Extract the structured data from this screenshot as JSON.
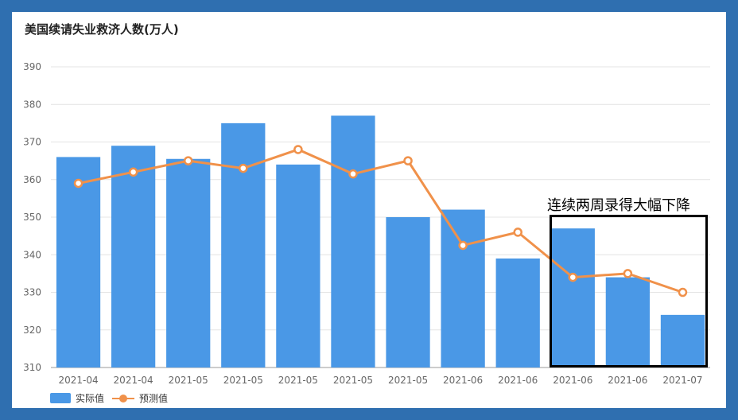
{
  "title": "美国续请失业救济人数(万人)",
  "colors": {
    "bar": "#4a98e6",
    "line": "#f0914a",
    "grid": "#e4e4e4",
    "axis_text": "#666666"
  },
  "legend": {
    "bar_label": "实际值",
    "line_label": "预测值"
  },
  "annotation": "连续两周录得大幅下降",
  "chart_data": {
    "type": "bar",
    "categories": [
      "2021-04",
      "2021-04",
      "2021-05",
      "2021-05",
      "2021-05",
      "2021-05",
      "2021-05",
      "2021-06",
      "2021-06",
      "2021-06",
      "2021-06",
      "2021-07"
    ],
    "series": [
      {
        "name": "实际值",
        "type": "bar",
        "values": [
          366,
          369,
          365.5,
          375,
          364,
          377,
          350,
          352,
          339,
          347,
          334,
          324
        ]
      },
      {
        "name": "预测值",
        "type": "line",
        "values": [
          359,
          362,
          365,
          363,
          368,
          361.5,
          365,
          342.5,
          346,
          334,
          335,
          330
        ]
      }
    ],
    "ylim": [
      310,
      390
    ],
    "yticks": [
      "310",
      "320",
      "330",
      "340",
      "350",
      "360",
      "370",
      "380",
      "390"
    ],
    "grid": true,
    "legend_position": "bottom-left"
  }
}
